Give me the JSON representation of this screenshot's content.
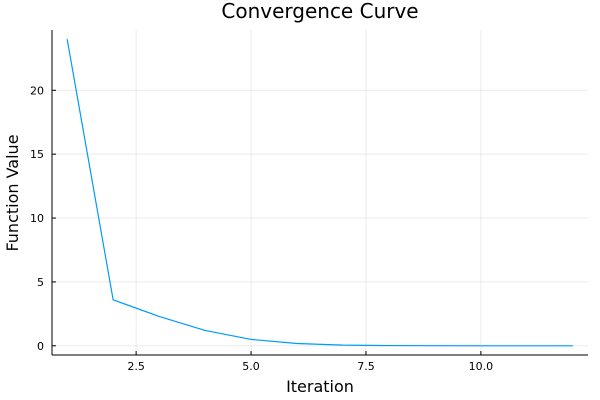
{
  "chart_data": {
    "type": "line",
    "title": "Convergence Curve",
    "xlabel": "Iteration",
    "ylabel": "Function Value",
    "xlim": [
      0.67,
      12.33
    ],
    "ylim": [
      -0.72,
      24.72
    ],
    "xticks": [
      2.5,
      5.0,
      7.5,
      10.0
    ],
    "xtick_labels": [
      "2.5",
      "5.0",
      "7.5",
      "10.0"
    ],
    "yticks": [
      0,
      5,
      10,
      15,
      20
    ],
    "ytick_labels": [
      "0",
      "5",
      "10",
      "15",
      "20"
    ],
    "grid": true,
    "legend": "none",
    "series": [
      {
        "color": "#009AFA",
        "x": [
          1,
          2,
          3,
          4,
          5,
          6,
          7,
          8,
          9,
          10,
          11,
          12
        ],
        "y": [
          24.0,
          3.6,
          2.3,
          1.2,
          0.5,
          0.18,
          0.05,
          0.02,
          0.01,
          0.0,
          0.0,
          0.0
        ]
      }
    ]
  }
}
